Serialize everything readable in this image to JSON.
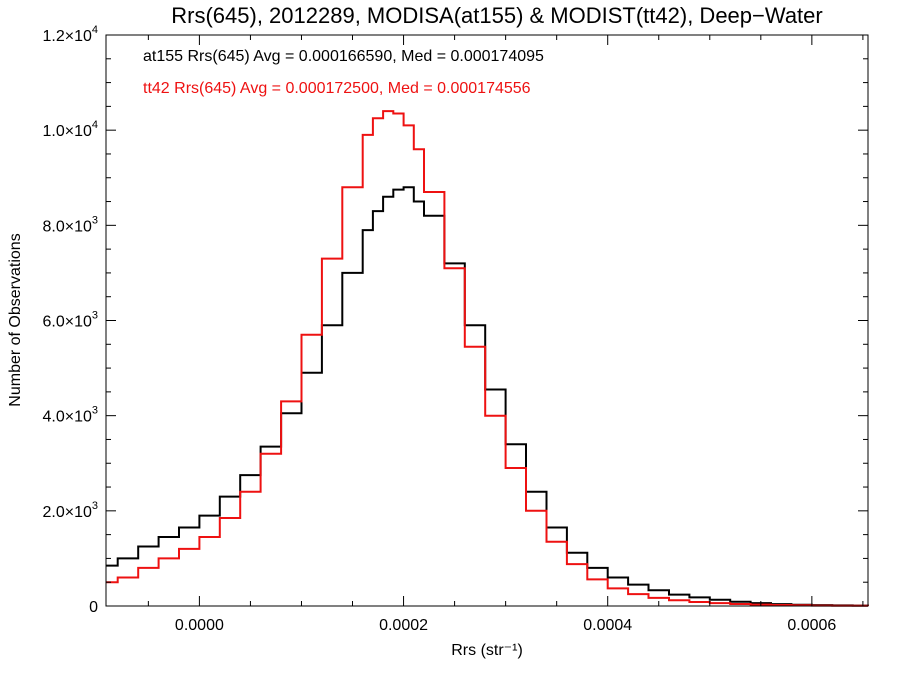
{
  "chart_data": {
    "type": "line",
    "title": "Rrs(645), 2012289, MODISA(at155) & MODIST(tt42), Deep−Water",
    "xlabel": "Rrs (str⁻¹)",
    "ylabel": "Number of Observations",
    "xlim": [
      -9.15e-05,
      0.000655
    ],
    "ylim": [
      0,
      12000
    ],
    "x_ticks": [
      0.0,
      0.0002,
      0.0004,
      0.0006
    ],
    "x_tick_labels": [
      "0.0000",
      "0.0002",
      "0.0004",
      "0.0006"
    ],
    "y_ticks": [
      0,
      2000,
      4000,
      6000,
      8000,
      10000,
      12000
    ],
    "y_tick_labels": [
      {
        "mantissa": "0",
        "exp": ""
      },
      {
        "mantissa": "2.0×10",
        "exp": "3"
      },
      {
        "mantissa": "4.0×10",
        "exp": "3"
      },
      {
        "mantissa": "6.0×10",
        "exp": "3"
      },
      {
        "mantissa": "8.0×10",
        "exp": "3"
      },
      {
        "mantissa": "1.0×10",
        "exp": "4"
      },
      {
        "mantissa": "1.2×10",
        "exp": "4"
      }
    ],
    "annotations": [
      {
        "text": "at155 Rrs(645) Avg = 0.000166590, Med = 0.000174095",
        "color": "#000000"
      },
      {
        "text": "tt42 Rrs(645) Avg = 0.000172500, Med = 0.000174556",
        "color": "#ee1111"
      }
    ],
    "series": [
      {
        "color": "#000000",
        "x": [
          -9.15e-05,
          -8e-05,
          -6e-05,
          -4e-05,
          -2e-05,
          0.0,
          2e-05,
          4e-05,
          6e-05,
          8e-05,
          0.0001,
          0.00012,
          0.00014,
          0.00016,
          0.00017,
          0.00018,
          0.00019,
          0.0002,
          0.00021,
          0.00022,
          0.00024,
          0.00026,
          0.00028,
          0.0003,
          0.00032,
          0.00034,
          0.00036,
          0.00038,
          0.0004,
          0.00042,
          0.00044,
          0.00046,
          0.00048,
          0.0005,
          0.00052,
          0.00054,
          0.00056,
          0.00058,
          0.0006,
          0.00062,
          0.00064,
          0.000655
        ],
        "y": [
          850,
          1000,
          1250,
          1450,
          1650,
          1900,
          2300,
          2750,
          3350,
          4050,
          4900,
          5900,
          7000,
          7900,
          8300,
          8600,
          8750,
          8800,
          8500,
          8200,
          7200,
          5900,
          4550,
          3400,
          2400,
          1650,
          1120,
          800,
          600,
          450,
          330,
          240,
          180,
          130,
          90,
          60,
          40,
          28,
          18,
          12,
          8,
          5
        ]
      },
      {
        "color": "#ee1111",
        "x": [
          -9.15e-05,
          -8e-05,
          -6e-05,
          -4e-05,
          -2e-05,
          0.0,
          2e-05,
          4e-05,
          6e-05,
          8e-05,
          0.0001,
          0.00012,
          0.00014,
          0.00016,
          0.00017,
          0.00018,
          0.00019,
          0.0002,
          0.00021,
          0.00022,
          0.00024,
          0.00026,
          0.00028,
          0.0003,
          0.00032,
          0.00034,
          0.00036,
          0.00038,
          0.0004,
          0.00042,
          0.00044,
          0.00046,
          0.00048,
          0.0005,
          0.00052,
          0.00054,
          0.00056,
          0.00058,
          0.0006,
          0.00062,
          0.00064,
          0.000655
        ],
        "y": [
          500,
          600,
          800,
          1000,
          1200,
          1450,
          1850,
          2400,
          3200,
          4300,
          5700,
          7300,
          8800,
          9900,
          10250,
          10400,
          10350,
          10100,
          9600,
          8700,
          7100,
          5450,
          4000,
          2900,
          2000,
          1350,
          880,
          560,
          370,
          250,
          170,
          120,
          85,
          60,
          42,
          30,
          20,
          14,
          9,
          6,
          4,
          3
        ]
      }
    ]
  }
}
